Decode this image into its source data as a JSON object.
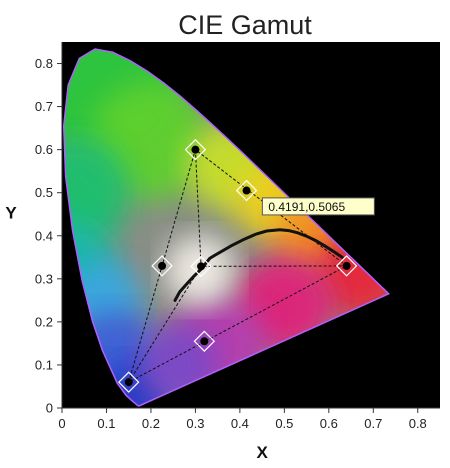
{
  "chart_data": {
    "type": "scatter",
    "title": "CIE Gamut",
    "xlabel": "X",
    "ylabel": "Y",
    "xlim": [
      0,
      0.85
    ],
    "ylim": [
      0,
      0.85
    ],
    "x_ticks": [
      "0",
      "0.1",
      "0.2",
      "0.3",
      "0.4",
      "0.5",
      "0.6",
      "0.7",
      "0.8"
    ],
    "y_ticks": [
      "0",
      "0.1",
      "0.2",
      "0.3",
      "0.4",
      "0.5",
      "0.6",
      "0.7",
      "0.8"
    ],
    "grid": false,
    "background_color": "#000000",
    "spectral_locus": [
      [
        0.1741,
        0.005
      ],
      [
        0.1738,
        0.0049
      ],
      [
        0.1733,
        0.0048
      ],
      [
        0.1726,
        0.0048
      ],
      [
        0.1714,
        0.0051
      ],
      [
        0.1689,
        0.0069
      ],
      [
        0.1644,
        0.0109
      ],
      [
        0.1566,
        0.0177
      ],
      [
        0.144,
        0.0297
      ],
      [
        0.1241,
        0.0578
      ],
      [
        0.0913,
        0.1327
      ],
      [
        0.0687,
        0.2007
      ],
      [
        0.0454,
        0.295
      ],
      [
        0.0235,
        0.4127
      ],
      [
        0.0082,
        0.5384
      ],
      [
        0.0039,
        0.6548
      ],
      [
        0.0139,
        0.7502
      ],
      [
        0.0389,
        0.812
      ],
      [
        0.0743,
        0.8338
      ],
      [
        0.1142,
        0.8262
      ],
      [
        0.1547,
        0.8059
      ],
      [
        0.1929,
        0.7816
      ],
      [
        0.2296,
        0.7543
      ],
      [
        0.2658,
        0.7243
      ],
      [
        0.3016,
        0.6923
      ],
      [
        0.3373,
        0.6589
      ],
      [
        0.3731,
        0.6245
      ],
      [
        0.4087,
        0.5896
      ],
      [
        0.4441,
        0.5547
      ],
      [
        0.4788,
        0.5202
      ],
      [
        0.5125,
        0.4866
      ],
      [
        0.5448,
        0.4544
      ],
      [
        0.5752,
        0.4242
      ],
      [
        0.6029,
        0.3965
      ],
      [
        0.627,
        0.3725
      ],
      [
        0.6482,
        0.3514
      ],
      [
        0.6658,
        0.334
      ],
      [
        0.6801,
        0.3197
      ],
      [
        0.6915,
        0.3083
      ],
      [
        0.7006,
        0.2993
      ],
      [
        0.7079,
        0.292
      ],
      [
        0.714,
        0.2859
      ],
      [
        0.719,
        0.2809
      ],
      [
        0.723,
        0.277
      ],
      [
        0.726,
        0.274
      ],
      [
        0.7347,
        0.2653
      ]
    ],
    "gamut_triangle": [
      {
        "name": "red",
        "x": 0.64,
        "y": 0.33
      },
      {
        "name": "green",
        "x": 0.3,
        "y": 0.6
      },
      {
        "name": "blue",
        "x": 0.15,
        "y": 0.06
      }
    ],
    "midpoints": [
      {
        "x": 0.415,
        "y": 0.505
      },
      {
        "x": 0.225,
        "y": 0.33
      },
      {
        "x": 0.32,
        "y": 0.155
      }
    ],
    "white_point": {
      "x": 0.3127,
      "y": 0.329
    },
    "planckian_locus": [
      [
        0.254,
        0.25
      ],
      [
        0.265,
        0.27
      ],
      [
        0.2806,
        0.2883
      ],
      [
        0.2952,
        0.3048
      ],
      [
        0.3136,
        0.3236
      ],
      [
        0.3322,
        0.3474
      ],
      [
        0.3447,
        0.3553
      ],
      [
        0.3805,
        0.3768
      ],
      [
        0.41,
        0.392
      ],
      [
        0.4369,
        0.4041
      ],
      [
        0.46,
        0.411
      ],
      [
        0.49,
        0.414
      ],
      [
        0.51,
        0.412
      ],
      [
        0.53,
        0.407
      ],
      [
        0.55,
        0.399
      ],
      [
        0.57,
        0.389
      ],
      [
        0.59,
        0.377
      ],
      [
        0.61,
        0.364
      ],
      [
        0.63,
        0.35
      ]
    ],
    "readout": {
      "x": 0.4191,
      "y": 0.5065,
      "text": "0.4191,0.5065"
    }
  }
}
